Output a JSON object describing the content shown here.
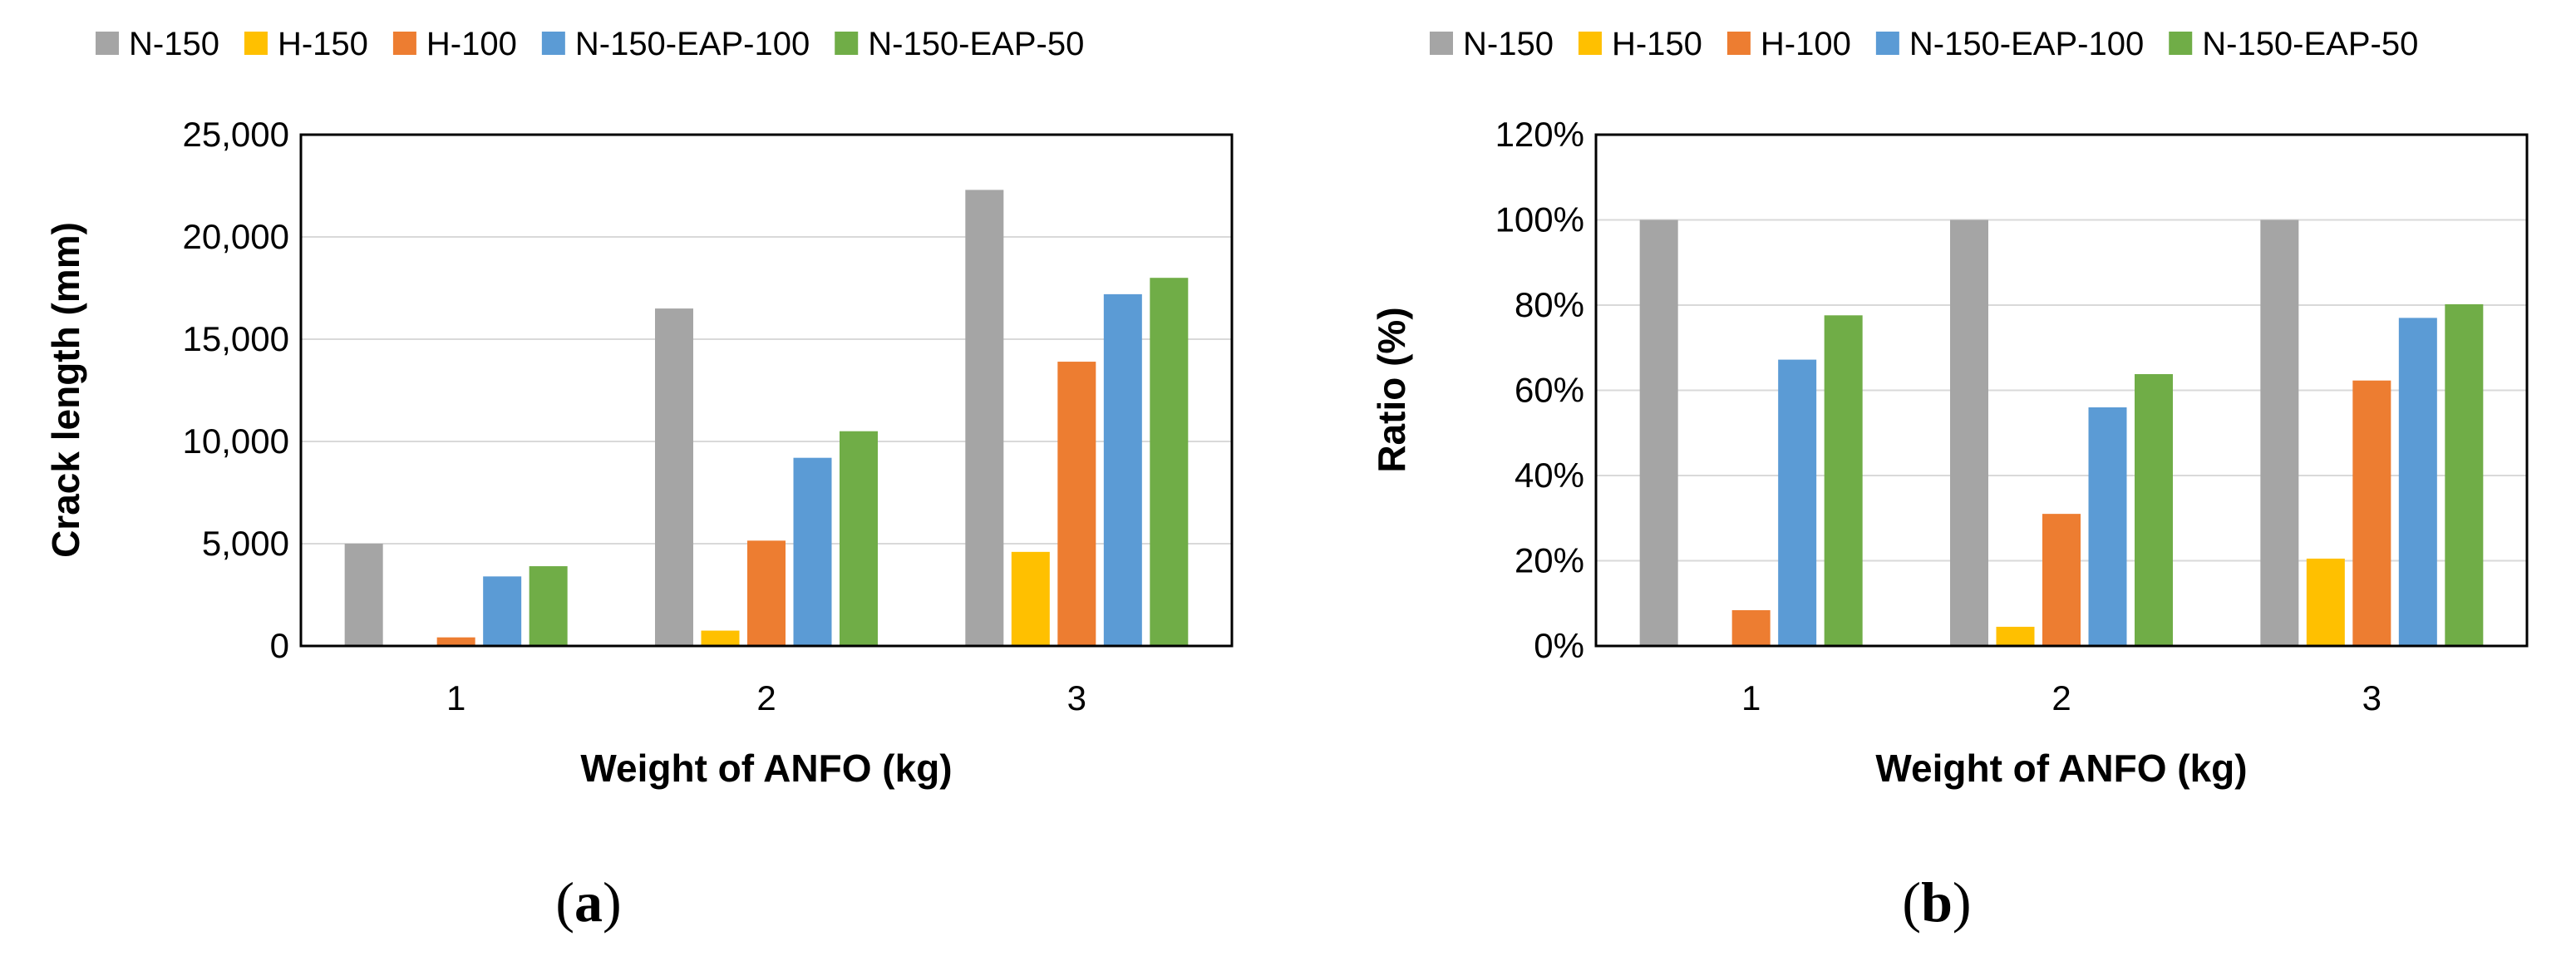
{
  "chart_data": [
    {
      "type": "bar",
      "panel_label": "a",
      "xlabel": "Weight of ANFO (kg)",
      "ylabel": "Crack length (mm)",
      "categories": [
        "1",
        "2",
        "3"
      ],
      "ylim": [
        0,
        25000
      ],
      "yticks": [
        "0",
        "5,000",
        "10,000",
        "15,000",
        "20,000",
        "25,000"
      ],
      "ytick_values": [
        0,
        5000,
        10000,
        15000,
        20000,
        25000
      ],
      "grid": true,
      "legend_position": "top",
      "series": [
        {
          "name": "N-150",
          "color": "#a5a5a5",
          "values": [
            5000,
            16500,
            22300
          ]
        },
        {
          "name": "H-150",
          "color": "#ffc000",
          "values": [
            0,
            750,
            4600
          ]
        },
        {
          "name": "H-100",
          "color": "#ed7d31",
          "values": [
            420,
            5150,
            13900
          ]
        },
        {
          "name": "N-150-EAP-100",
          "color": "#5b9bd5",
          "values": [
            3400,
            9200,
            17200
          ]
        },
        {
          "name": "N-150-EAP-50",
          "color": "#70ad47",
          "values": [
            3900,
            10500,
            18000
          ]
        }
      ]
    },
    {
      "type": "bar",
      "panel_label": "b",
      "xlabel": "Weight of ANFO (kg)",
      "ylabel": "Ratio (%)",
      "categories": [
        "1",
        "2",
        "3"
      ],
      "ylim": [
        0,
        120
      ],
      "yticks": [
        "0%",
        "20%",
        "40%",
        "60%",
        "80%",
        "100%",
        "120%"
      ],
      "ytick_values": [
        0,
        20,
        40,
        60,
        80,
        100,
        120
      ],
      "grid": true,
      "legend_position": "top",
      "series": [
        {
          "name": "N-150",
          "color": "#a5a5a5",
          "values": [
            100,
            100,
            100
          ]
        },
        {
          "name": "H-150",
          "color": "#ffc000",
          "values": [
            0,
            4.5,
            20.5
          ]
        },
        {
          "name": "H-100",
          "color": "#ed7d31",
          "values": [
            8.4,
            31,
            62.3
          ]
        },
        {
          "name": "N-150-EAP-100",
          "color": "#5b9bd5",
          "values": [
            67.2,
            56,
            77
          ]
        },
        {
          "name": "N-150-EAP-50",
          "color": "#70ad47",
          "values": [
            77.6,
            63.8,
            80.2
          ]
        }
      ]
    }
  ]
}
